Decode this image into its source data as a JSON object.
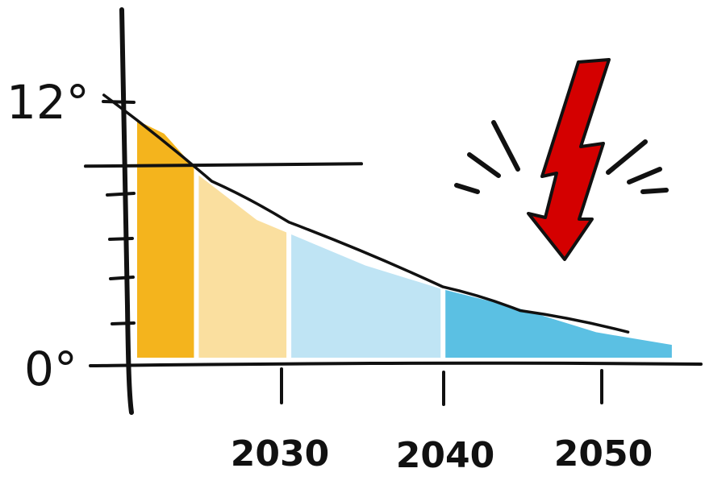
{
  "chart_data": {
    "type": "area",
    "y_tick_labels": [
      "0°",
      "12°"
    ],
    "x_tick_labels": [
      "2030",
      "2040",
      "2050"
    ],
    "ylim": [
      0,
      12
    ],
    "xlim": [
      2020,
      2056
    ],
    "threshold": 9,
    "series": [
      {
        "color": "#5BC0E3",
        "values": [
          [
            2020,
            3.2
          ],
          [
            2040,
            3.4
          ],
          [
            2045,
            2.5
          ],
          [
            2050,
            1.4
          ],
          [
            2055,
            0.8
          ]
        ]
      },
      {
        "color": "#BFE4F4",
        "values": [
          [
            2020,
            6.4
          ],
          [
            2030,
            6.0
          ],
          [
            2035,
            4.5
          ],
          [
            2040,
            3.4
          ]
        ]
      },
      {
        "color": "#FADF9F",
        "values": [
          [
            2020,
            9.0
          ],
          [
            2024,
            8.8
          ],
          [
            2028,
            6.6
          ],
          [
            2030,
            6.0
          ]
        ]
      },
      {
        "color": "#F4B41D",
        "values": [
          [
            2020,
            11.3
          ],
          [
            2022,
            10.6
          ],
          [
            2024,
            9.0
          ]
        ]
      }
    ],
    "trend_line": [
      [
        2018,
        12.3
      ],
      [
        2025,
        8.3
      ],
      [
        2030,
        6.4
      ],
      [
        2040,
        3.4
      ],
      [
        2045,
        2.3
      ],
      [
        2052,
        1.3
      ]
    ],
    "colors": {
      "ink": "#111111",
      "warning": "#D40000"
    }
  },
  "icons": {
    "warning": "lightning-bolt-icon"
  }
}
